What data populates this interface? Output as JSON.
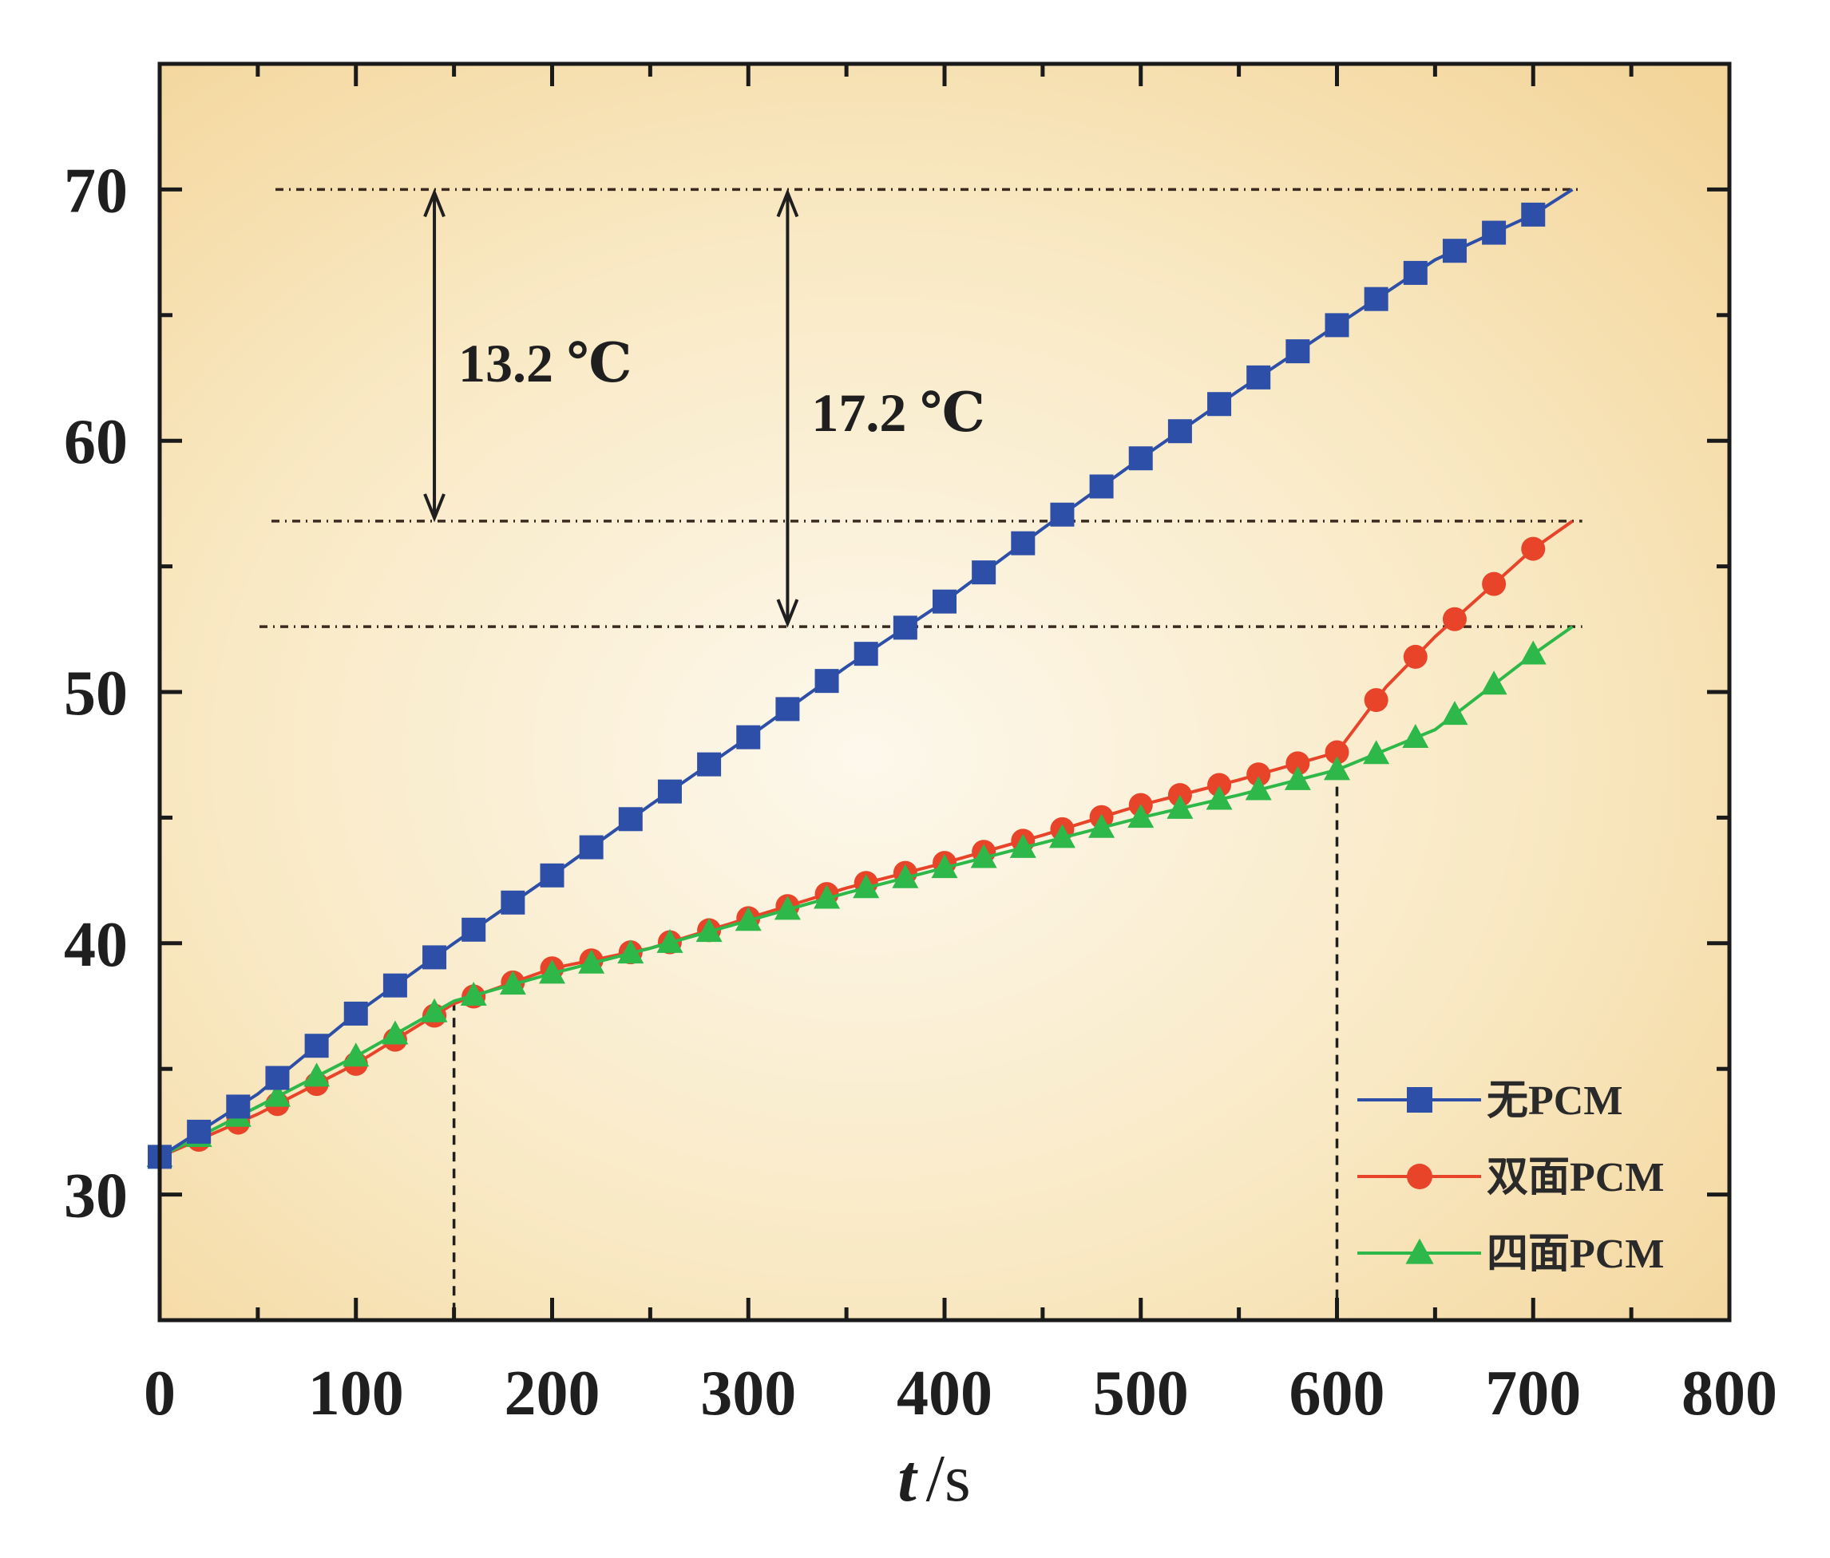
{
  "chart_data": {
    "type": "line",
    "title": "",
    "xlabel_italic": "t",
    "xlabel_unit": "/s",
    "ylabel": "",
    "xlim": [
      0,
      800
    ],
    "ylim": [
      25,
      75
    ],
    "xticks": [
      0,
      100,
      200,
      300,
      400,
      500,
      600,
      700,
      800
    ],
    "yticks": [
      30,
      40,
      50,
      60,
      70
    ],
    "grid": false,
    "legend_position": "bottom-right",
    "series": [
      {
        "name": "无PCM",
        "color": "#2d4fa8",
        "marker": "square",
        "x": [
          0,
          50,
          100,
          150,
          200,
          250,
          300,
          350,
          400,
          450,
          500,
          550,
          600,
          650,
          700,
          720
        ],
        "y": [
          31.5,
          34.0,
          37.2,
          40.0,
          42.7,
          45.5,
          48.2,
          51.0,
          53.6,
          56.5,
          59.3,
          62.0,
          64.6,
          67.2,
          69.0,
          70.0
        ]
      },
      {
        "name": "双面PCM",
        "color": "#e8442a",
        "marker": "circle",
        "x": [
          0,
          50,
          100,
          150,
          200,
          250,
          300,
          350,
          400,
          450,
          500,
          550,
          600,
          625,
          650,
          700,
          720
        ],
        "y": [
          31.5,
          33.2,
          35.2,
          37.6,
          39.0,
          39.8,
          41.0,
          42.2,
          43.2,
          44.3,
          45.5,
          46.5,
          47.6,
          50.2,
          52.2,
          55.7,
          56.8
        ]
      },
      {
        "name": "四面PCM",
        "color": "#2eb84a",
        "marker": "triangle",
        "x": [
          0,
          50,
          100,
          150,
          200,
          250,
          300,
          350,
          400,
          450,
          500,
          550,
          600,
          650,
          700,
          720
        ],
        "y": [
          31.5,
          33.5,
          35.5,
          37.7,
          38.8,
          39.8,
          40.9,
          42.0,
          43.0,
          44.0,
          45.0,
          45.9,
          46.9,
          48.5,
          51.5,
          52.6
        ]
      }
    ],
    "annotations": [
      {
        "text": "13.2 ℃",
        "x": 140,
        "from": 70.0,
        "to": 56.8
      },
      {
        "text": "17.2 ℃",
        "x": 320,
        "from": 70.0,
        "to": 52.6
      }
    ],
    "reference_hlines": [
      70.0,
      56.8,
      52.6
    ],
    "reference_vlines": [
      {
        "x": 150,
        "y": 37.7
      },
      {
        "x": 600,
        "y": 46.9
      }
    ]
  },
  "colors": {
    "plot_bg_center": "#fdf8ec",
    "plot_bg_edge": "#f3d59a",
    "frame": "#1a1a1a"
  }
}
